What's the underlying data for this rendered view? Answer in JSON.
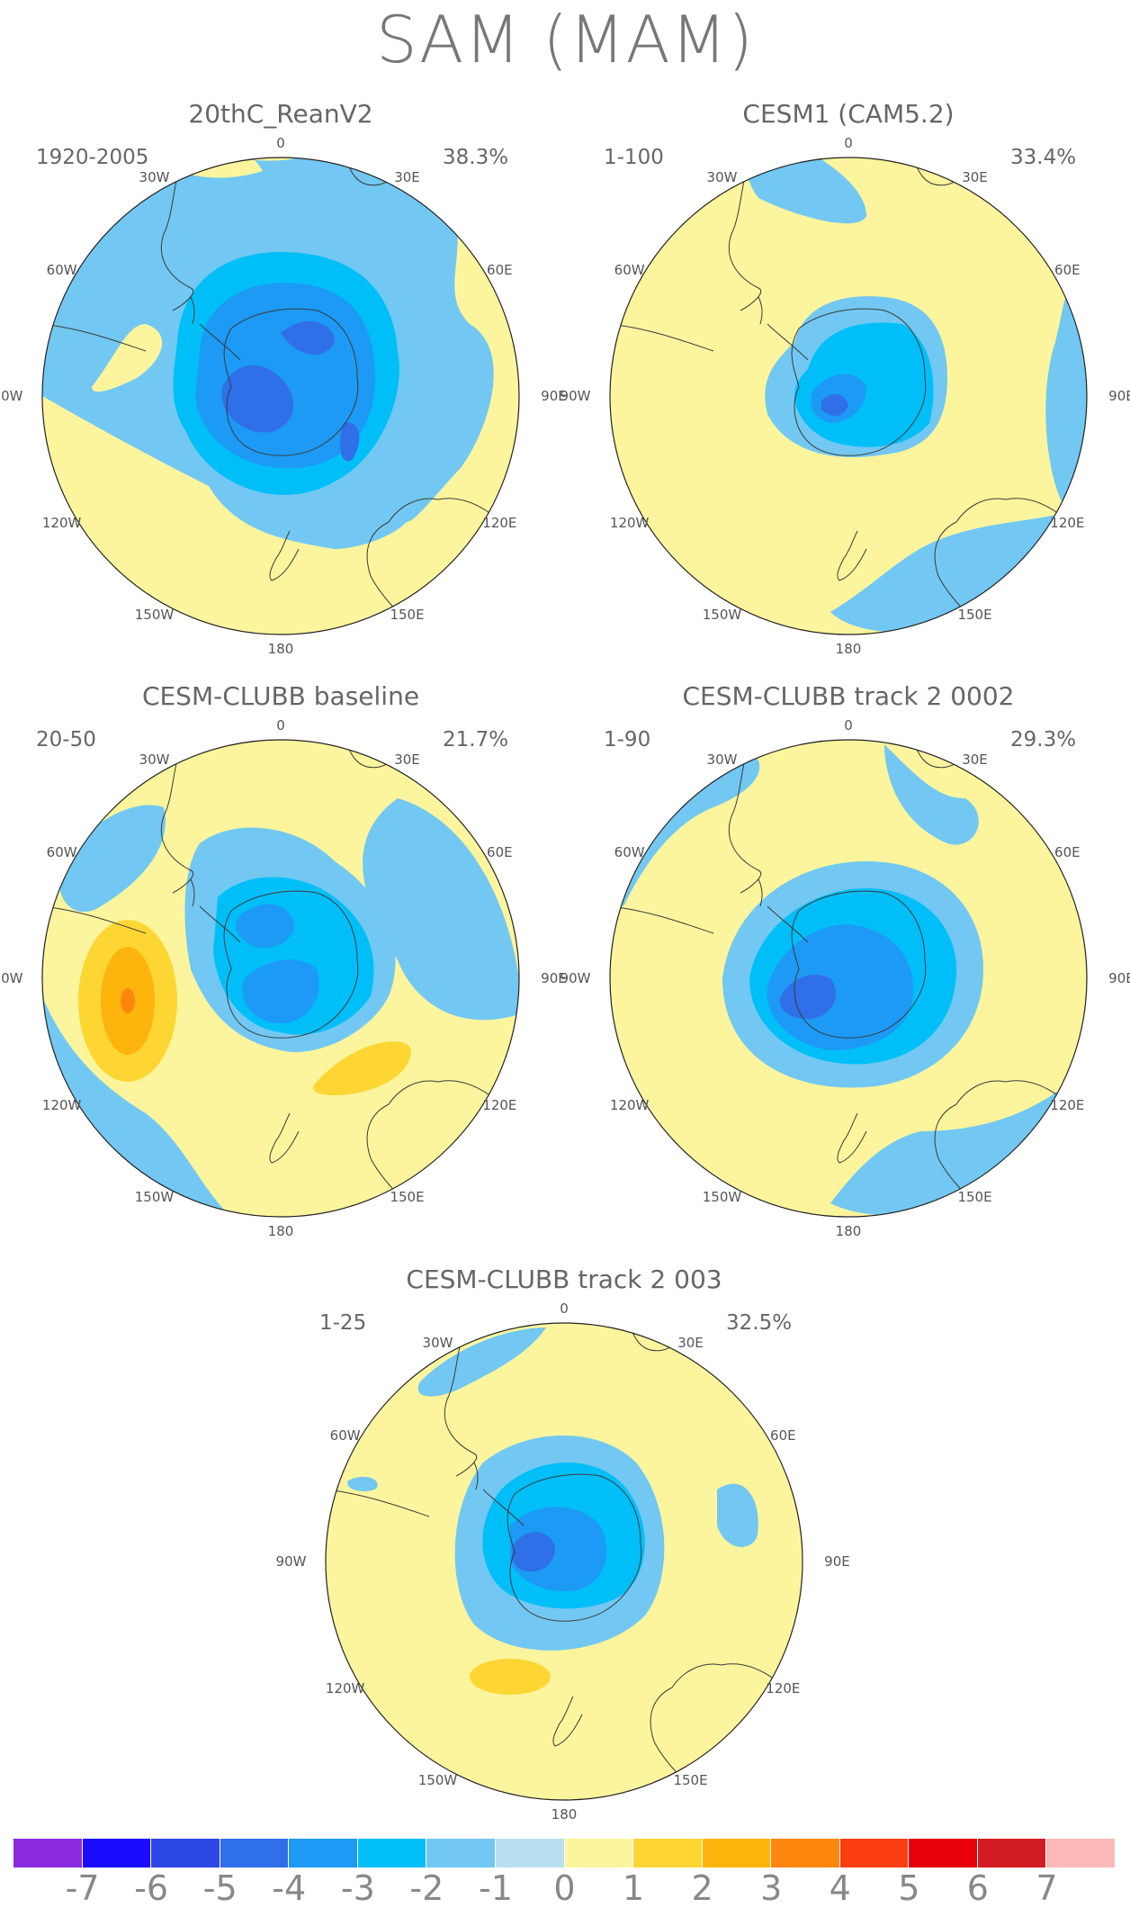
{
  "figure": {
    "title": "SAM (MAM)"
  },
  "panels": [
    {
      "title": "20thC_ReanV2",
      "period": "1920-2005",
      "variance": "38.3%",
      "pattern": "reanalysis"
    },
    {
      "title": "CESM1 (CAM5.2)",
      "period": "1-100",
      "variance": "33.4%",
      "pattern": "cesm1"
    },
    {
      "title": "CESM-CLUBB baseline",
      "period": "20-50",
      "variance": "21.7%",
      "pattern": "baseline"
    },
    {
      "title": "CESM-CLUBB track 2 0002",
      "period": "1-90",
      "variance": "29.3%",
      "pattern": "track2_0002"
    },
    {
      "title": "CESM-CLUBB track 2 003",
      "period": "1-25",
      "variance": "32.5%",
      "pattern": "track2_003"
    }
  ],
  "longitude_labels": [
    "0",
    "30E",
    "60E",
    "90E",
    "120E",
    "150E",
    "180",
    "150W",
    "120W",
    "90W",
    "60W",
    "30W"
  ],
  "colorbar": {
    "colors": [
      "#8a2be2",
      "#1a0dff",
      "#2d46e6",
      "#2f6fe8",
      "#1c9af5",
      "#00bff8",
      "#72c8f2",
      "#b8dff1",
      "#fdf59d",
      "#fdd634",
      "#fdb40c",
      "#fd860f",
      "#fb3e12",
      "#e8000b",
      "#d11d23",
      "#fbb8b8"
    ],
    "labels": [
      "-7",
      "-6",
      "-5",
      "-4",
      "-3",
      "-2",
      "-1",
      "0",
      "1",
      "2",
      "3",
      "4",
      "5",
      "6",
      "7"
    ]
  }
}
